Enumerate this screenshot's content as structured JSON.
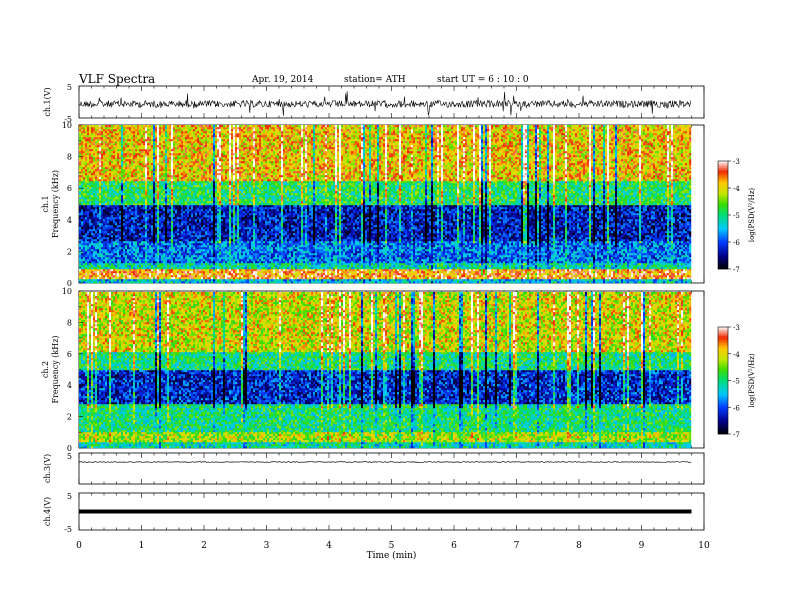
{
  "header": {
    "title": "VLF  Spectra",
    "date": "Apr. 19,  2014",
    "station": "station= ATH",
    "start_ut": "start  UT  =   6  : 10 : 0"
  },
  "chart_data": [
    {
      "type": "line",
      "panel": "ch1-waveform",
      "ylabel": "ch.1(V)",
      "y_ticks": [
        "5",
        "-5"
      ],
      "ylim": [
        -5,
        5
      ],
      "description_values": "noisy waveform near ~0 V, spikes up to about ±3 V"
    },
    {
      "type": "heatmap",
      "panel": "ch1-spectrogram",
      "ylabel": "ch.1\nFrequency (kHz)",
      "ylabel_line1": "ch.1",
      "ylabel_line2": "Frequency  (kHz)",
      "y_ticks": [
        "0",
        "2",
        "4",
        "6",
        "8",
        "10"
      ],
      "ylim": [
        0,
        10
      ],
      "colorbar": {
        "label": "log(PSD(V²/Hz)",
        "ticks": [
          "-3",
          "-4",
          "-5",
          "-6",
          "-7"
        ],
        "range": [
          -7,
          -3
        ]
      }
    },
    {
      "type": "heatmap",
      "panel": "ch2-spectrogram",
      "ylabel_line1": "ch.2",
      "ylabel_line2": "Frequency  (kHz)",
      "y_ticks": [
        "0",
        "2",
        "4",
        "6",
        "8",
        "10"
      ],
      "ylim": [
        0,
        10
      ],
      "colorbar": {
        "label": "log(PSD(V²/Hz)",
        "ticks": [
          "-3",
          "-4",
          "-5",
          "-6",
          "-7"
        ],
        "range": [
          -7,
          -3
        ]
      }
    },
    {
      "type": "line",
      "panel": "ch3-waveform",
      "ylabel": "ch.3(V)",
      "y_ticks": [
        "5"
      ],
      "ylim": [
        -5,
        5
      ]
    },
    {
      "type": "line",
      "panel": "ch4-waveform",
      "ylabel": "ch.4(V)",
      "y_ticks": [
        "5",
        "-5"
      ],
      "ylim": [
        -5,
        5
      ]
    }
  ],
  "x_axis": {
    "label": "Time  (min)",
    "ticks": [
      "0",
      "1",
      "2",
      "3",
      "4",
      "5",
      "6",
      "7",
      "8",
      "9",
      "10"
    ],
    "xlim": [
      0,
      10
    ],
    "data_end": 9.8
  }
}
